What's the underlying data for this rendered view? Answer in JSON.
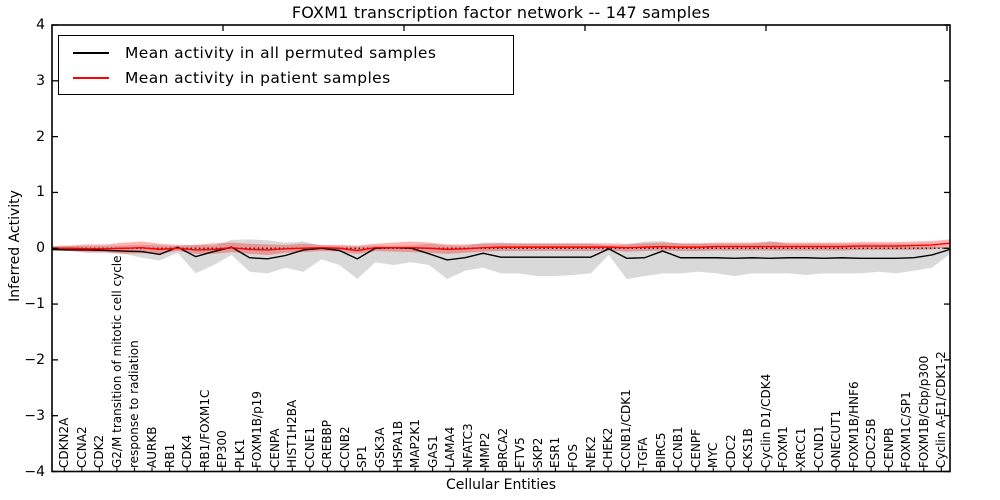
{
  "title": "FOXM1 transcription factor network -- 147 samples",
  "chart_data": {
    "type": "line",
    "title": "FOXM1 transcription factor network -- 147 samples",
    "xlabel": "Cellular Entities",
    "ylabel": "Inferred Activity",
    "ylim": [
      -4,
      4
    ],
    "yticks": [
      4,
      3,
      2,
      1,
      0,
      -1,
      -2,
      -3,
      -4
    ],
    "grid": false,
    "legend_position": "upper-left",
    "zero_line": {
      "style": "dotted",
      "color": "#000000",
      "y": 0
    },
    "band_colors": {
      "permuted": "rgba(0,0,0,0.15)",
      "patient": "rgba(255,0,0,0.30)"
    },
    "categories": [
      "CDKN2A",
      "CCNA2",
      "CDK2",
      "G2/M transition of mitotic cell cycle",
      "response to radiation",
      "AURKB",
      "RB1",
      "CDK4",
      "RB1/FOXM1C",
      "EP300",
      "PLK1",
      "FOXM1B/p19",
      "CENPA",
      "HIST1H2BA",
      "CCNE1",
      "CREBBP",
      "CCNB2",
      "SP1",
      "GSK3A",
      "HSPA1B",
      "MAP2K1",
      "GAS1",
      "LAMA4",
      "NFATC3",
      "MMP2",
      "BRCA2",
      "ETV5",
      "SKP2",
      "ESR1",
      "FOS",
      "NEK2",
      "CHEK2",
      "CCNB1/CDK1",
      "TGFA",
      "BIRC5",
      "CCNB1",
      "CENPF",
      "MYC",
      "CDC2",
      "CKS1B",
      "Cyclin D1/CDK4",
      "FOXM1",
      "XRCC1",
      "CCND1",
      "ONECUT1",
      "FOXM1B/HNF6",
      "CDC25B",
      "CENPB",
      "FOXM1C/SP1",
      "FOXM1B/Cbp/p300",
      "Cyclin A-E1/CDK1-2"
    ],
    "series": [
      {
        "name": "Mean activity in all permuted samples",
        "color": "#000000",
        "values": [
          -0.02,
          -0.03,
          -0.03,
          -0.04,
          -0.05,
          -0.06,
          -0.11,
          0.02,
          -0.15,
          -0.06,
          0.02,
          -0.17,
          -0.19,
          -0.13,
          -0.03,
          0.0,
          -0.04,
          -0.19,
          0.0,
          0.01,
          0.0,
          -0.1,
          -0.21,
          -0.17,
          -0.09,
          -0.16,
          -0.16,
          -0.16,
          -0.16,
          -0.16,
          -0.16,
          -0.01,
          -0.18,
          -0.17,
          -0.05,
          -0.17,
          -0.17,
          -0.17,
          -0.18,
          -0.17,
          -0.18,
          -0.17,
          -0.17,
          -0.18,
          -0.17,
          -0.18,
          -0.18,
          -0.18,
          -0.17,
          -0.12,
          -0.02
        ],
        "band_upper": [
          0.03,
          0.04,
          0.04,
          0.04,
          0.05,
          0.06,
          0.05,
          0.04,
          0.06,
          0.05,
          0.15,
          0.16,
          0.14,
          0.1,
          0.12,
          0.05,
          0.04,
          0.03,
          0.05,
          0.04,
          0.05,
          0.08,
          0.05,
          0.04,
          0.1,
          0.1,
          0.08,
          0.08,
          0.08,
          0.08,
          0.08,
          0.05,
          0.06,
          0.12,
          0.13,
          0.08,
          0.08,
          0.08,
          0.08,
          0.08,
          0.13,
          0.08,
          0.08,
          0.08,
          0.08,
          0.08,
          0.08,
          0.08,
          0.06,
          0.04,
          0.0
        ],
        "band_lower": [
          -0.05,
          -0.05,
          -0.06,
          -0.07,
          -0.1,
          -0.17,
          -0.22,
          -0.08,
          -0.45,
          -0.3,
          -0.12,
          -0.42,
          -0.45,
          -0.35,
          -0.42,
          -0.2,
          -0.3,
          -0.55,
          -0.25,
          -0.3,
          -0.25,
          -0.3,
          -0.55,
          -0.4,
          -0.35,
          -0.45,
          -0.45,
          -0.5,
          -0.5,
          -0.48,
          -0.45,
          -0.12,
          -0.55,
          -0.5,
          -0.45,
          -0.45,
          -0.42,
          -0.45,
          -0.5,
          -0.45,
          -0.45,
          -0.45,
          -0.48,
          -0.45,
          -0.45,
          -0.45,
          -0.42,
          -0.45,
          -0.4,
          -0.35,
          -0.1
        ]
      },
      {
        "name": "Mean activity in patient samples",
        "color": "#ff0000",
        "values": [
          0.0,
          0.0,
          -0.01,
          -0.01,
          0.0,
          0.01,
          -0.02,
          0.0,
          -0.03,
          -0.02,
          0.01,
          -0.02,
          -0.03,
          -0.01,
          0.0,
          0.01,
          0.0,
          -0.04,
          0.01,
          0.01,
          0.01,
          0.0,
          -0.02,
          -0.01,
          0.01,
          0.02,
          0.02,
          0.02,
          0.02,
          0.02,
          0.02,
          0.02,
          0.01,
          0.02,
          0.03,
          0.02,
          0.02,
          0.03,
          0.03,
          0.03,
          0.03,
          0.03,
          0.03,
          0.03,
          0.03,
          0.04,
          0.04,
          0.04,
          0.05,
          0.06,
          0.09
        ],
        "band_upper": [
          0.04,
          0.05,
          0.07,
          0.07,
          0.1,
          0.12,
          0.08,
          0.06,
          0.06,
          0.09,
          0.1,
          0.08,
          0.07,
          0.06,
          0.08,
          0.06,
          0.06,
          0.05,
          0.08,
          0.1,
          0.12,
          0.1,
          0.07,
          0.07,
          0.08,
          0.09,
          0.09,
          0.09,
          0.09,
          0.09,
          0.09,
          0.09,
          0.08,
          0.09,
          0.1,
          0.09,
          0.09,
          0.1,
          0.1,
          0.1,
          0.11,
          0.1,
          0.1,
          0.1,
          0.1,
          0.11,
          0.11,
          0.11,
          0.12,
          0.13,
          0.16
        ],
        "band_lower": [
          -0.04,
          -0.05,
          -0.08,
          -0.08,
          -0.1,
          -0.09,
          -0.1,
          -0.05,
          -0.1,
          -0.1,
          -0.07,
          -0.1,
          -0.12,
          -0.08,
          -0.07,
          -0.05,
          -0.06,
          -0.1,
          -0.05,
          -0.06,
          -0.07,
          -0.08,
          -0.1,
          -0.08,
          -0.06,
          -0.05,
          -0.05,
          -0.05,
          -0.05,
          -0.05,
          -0.05,
          -0.04,
          -0.06,
          -0.05,
          -0.04,
          -0.05,
          -0.05,
          -0.04,
          -0.04,
          -0.04,
          -0.04,
          -0.04,
          -0.04,
          -0.04,
          -0.04,
          -0.03,
          -0.03,
          -0.03,
          -0.03,
          -0.02,
          0.02
        ]
      }
    ]
  },
  "legend": {
    "items": [
      {
        "label": "Mean activity in all permuted samples",
        "color": "#000000"
      },
      {
        "label": "Mean activity in patient samples",
        "color": "#ff0000"
      }
    ]
  }
}
